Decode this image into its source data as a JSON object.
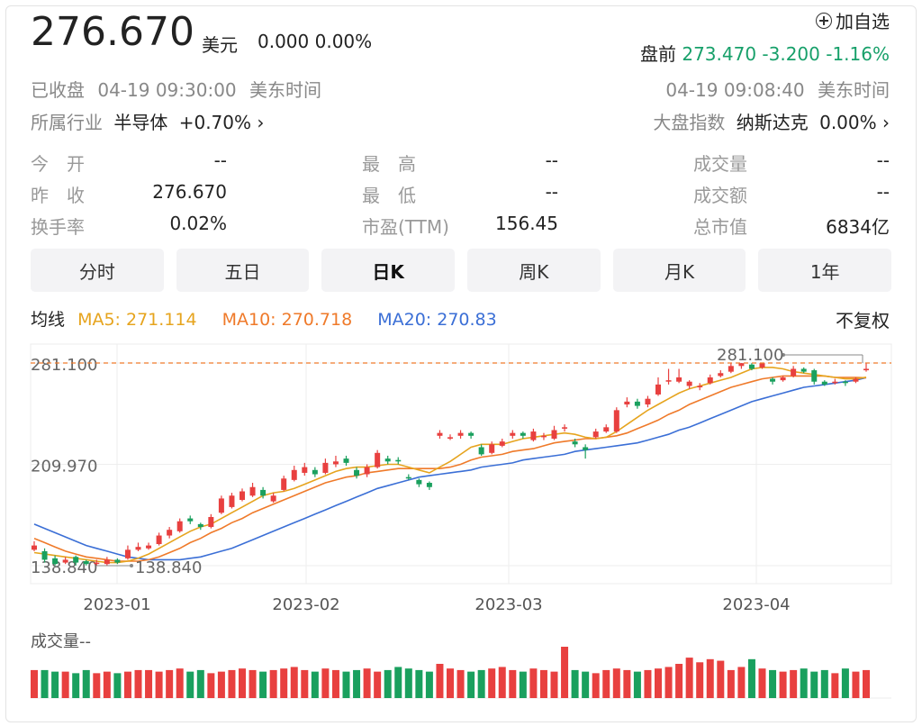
{
  "header": {
    "price": "276.670",
    "unit": "美元",
    "change": "0.000 0.00%",
    "watch_label": "加自选",
    "premarket_label": "盘前",
    "premarket_value": "273.470 -3.200 -1.16%",
    "status": "已收盘",
    "close_time": "04-19 09:30:00",
    "timezone": "美东时间",
    "premarket_time": "04-19 09:08:40",
    "industry_label": "所属行业",
    "industry_name": "半导体",
    "industry_change": "+0.70%",
    "index_label": "大盘指数",
    "index_name": "纳斯达克",
    "index_change": "0.00%"
  },
  "stats": [
    {
      "k": "今　开",
      "v": "--"
    },
    {
      "k": "最　高",
      "v": "--"
    },
    {
      "k": "成交量",
      "v": "--"
    },
    {
      "k": "昨　收",
      "v": "276.670"
    },
    {
      "k": "最　低",
      "v": "--"
    },
    {
      "k": "成交额",
      "v": "--"
    },
    {
      "k": "换手率",
      "v": "0.02%"
    },
    {
      "k": "市盈(TTM)",
      "v": "156.45"
    },
    {
      "k": "总市值",
      "v": "6834亿"
    }
  ],
  "tabs": [
    "分时",
    "五日",
    "日K",
    "周K",
    "月K",
    "1年"
  ],
  "active_tab": 2,
  "ma": {
    "label": "均线",
    "ma5": "MA5: 271.114",
    "ma10": "MA10: 270.718",
    "ma20": "MA20: 270.83",
    "adjust": "不复权"
  },
  "colors": {
    "up": "#e8403f",
    "down": "#1aa05e",
    "ma5": "#e6a41e",
    "ma10": "#ef7a2a",
    "ma20": "#3b6fd6"
  },
  "chart_data": {
    "type": "candlestick",
    "y_ticks": [
      "281.100",
      "209.970",
      "138.840"
    ],
    "ylim": [
      138.84,
      281.1
    ],
    "x_ticks": [
      "2023-01",
      "2023-02",
      "2023-03",
      "2023-04"
    ],
    "max_label": "281.100",
    "min_label": "138.840",
    "volume_label": "成交量--",
    "candles": [
      {
        "o": 150,
        "c": 153,
        "h": 156,
        "l": 149
      },
      {
        "o": 149,
        "c": 143,
        "h": 151,
        "l": 141
      },
      {
        "o": 144,
        "c": 140,
        "h": 146,
        "l": 139
      },
      {
        "o": 141,
        "c": 143,
        "h": 145,
        "l": 140
      },
      {
        "o": 145,
        "c": 141,
        "h": 146,
        "l": 139
      },
      {
        "o": 142,
        "c": 140,
        "h": 143,
        "l": 139
      },
      {
        "o": 140,
        "c": 141,
        "h": 143,
        "l": 138.84
      },
      {
        "o": 140,
        "c": 143,
        "h": 145,
        "l": 139
      },
      {
        "o": 143,
        "c": 141,
        "h": 144,
        "l": 140
      },
      {
        "o": 144,
        "c": 150,
        "h": 153,
        "l": 143
      },
      {
        "o": 150,
        "c": 152,
        "h": 155,
        "l": 149
      },
      {
        "o": 151,
        "c": 153,
        "h": 155,
        "l": 150
      },
      {
        "o": 154,
        "c": 160,
        "h": 162,
        "l": 153
      },
      {
        "o": 160,
        "c": 164,
        "h": 166,
        "l": 158
      },
      {
        "o": 163,
        "c": 170,
        "h": 172,
        "l": 162
      },
      {
        "o": 172,
        "c": 170,
        "h": 174,
        "l": 168
      },
      {
        "o": 168,
        "c": 166,
        "h": 169,
        "l": 164
      },
      {
        "o": 166,
        "c": 173,
        "h": 175,
        "l": 165
      },
      {
        "o": 176,
        "c": 186,
        "h": 188,
        "l": 175
      },
      {
        "o": 180,
        "c": 188,
        "h": 190,
        "l": 179
      },
      {
        "o": 185,
        "c": 191,
        "h": 193,
        "l": 184
      },
      {
        "o": 188,
        "c": 194,
        "h": 197,
        "l": 187
      },
      {
        "o": 192,
        "c": 188,
        "h": 194,
        "l": 186
      },
      {
        "o": 184,
        "c": 188,
        "h": 190,
        "l": 183
      },
      {
        "o": 192,
        "c": 200,
        "h": 202,
        "l": 191
      },
      {
        "o": 199,
        "c": 206,
        "h": 209,
        "l": 198
      },
      {
        "o": 204,
        "c": 208,
        "h": 211,
        "l": 202
      },
      {
        "o": 206,
        "c": 203,
        "h": 208,
        "l": 201
      },
      {
        "o": 204,
        "c": 211,
        "h": 214,
        "l": 203
      },
      {
        "o": 210,
        "c": 212,
        "h": 216,
        "l": 208
      },
      {
        "o": 214,
        "c": 211,
        "h": 216,
        "l": 209
      },
      {
        "o": 206,
        "c": 202,
        "h": 208,
        "l": 200
      },
      {
        "o": 203,
        "c": 208,
        "h": 210,
        "l": 201
      },
      {
        "o": 208,
        "c": 218,
        "h": 220,
        "l": 207
      },
      {
        "o": 214,
        "c": 212,
        "h": 216,
        "l": 210
      },
      {
        "o": 213,
        "c": 212,
        "h": 215,
        "l": 210
      },
      {
        "o": 201,
        "c": 200,
        "h": 203,
        "l": 199
      },
      {
        "o": 199,
        "c": 196,
        "h": 200,
        "l": 194
      },
      {
        "o": 197,
        "c": 194,
        "h": 198,
        "l": 192
      },
      {
        "o": 230,
        "c": 232,
        "h": 234,
        "l": 228
      },
      {
        "o": 228,
        "c": 229,
        "h": 231,
        "l": 227
      },
      {
        "o": 230,
        "c": 232,
        "h": 234,
        "l": 228
      },
      {
        "o": 232,
        "c": 230,
        "h": 233,
        "l": 228
      },
      {
        "o": 222,
        "c": 217,
        "h": 224,
        "l": 216
      },
      {
        "o": 218,
        "c": 224,
        "h": 226,
        "l": 217
      },
      {
        "o": 223,
        "c": 226,
        "h": 228,
        "l": 222
      },
      {
        "o": 230,
        "c": 232,
        "h": 234,
        "l": 228
      },
      {
        "o": 232,
        "c": 230,
        "h": 233,
        "l": 228
      },
      {
        "o": 227,
        "c": 233,
        "h": 235,
        "l": 226
      },
      {
        "o": 229,
        "c": 230,
        "h": 232,
        "l": 227
      },
      {
        "o": 228,
        "c": 234,
        "h": 237,
        "l": 227
      },
      {
        "o": 235,
        "c": 236,
        "h": 238,
        "l": 233
      },
      {
        "o": 226,
        "c": 224,
        "h": 228,
        "l": 222
      },
      {
        "o": 222,
        "c": 220,
        "h": 224,
        "l": 214
      },
      {
        "o": 229,
        "c": 233,
        "h": 235,
        "l": 228
      },
      {
        "o": 233,
        "c": 236,
        "h": 238,
        "l": 232
      },
      {
        "o": 233,
        "c": 248,
        "h": 250,
        "l": 232
      },
      {
        "o": 252,
        "c": 254,
        "h": 257,
        "l": 250
      },
      {
        "o": 254,
        "c": 251,
        "h": 256,
        "l": 249
      },
      {
        "o": 252,
        "c": 256,
        "h": 258,
        "l": 250
      },
      {
        "o": 259,
        "c": 266,
        "h": 271,
        "l": 258
      },
      {
        "o": 268,
        "c": 269,
        "h": 277,
        "l": 266
      },
      {
        "o": 268,
        "c": 271,
        "h": 277,
        "l": 267
      },
      {
        "o": 265,
        "c": 268,
        "h": 269,
        "l": 263
      },
      {
        "o": 264,
        "c": 265,
        "h": 267,
        "l": 262
      },
      {
        "o": 267,
        "c": 271,
        "h": 273,
        "l": 266
      },
      {
        "o": 272,
        "c": 274,
        "h": 276,
        "l": 271
      },
      {
        "o": 275,
        "c": 279,
        "h": 281,
        "l": 274
      },
      {
        "o": 279,
        "c": 281,
        "h": 281.1,
        "l": 277
      },
      {
        "o": 280,
        "c": 277,
        "h": 281,
        "l": 276
      },
      {
        "o": 278,
        "c": 281,
        "h": 281.1,
        "l": 277
      },
      {
        "o": 270,
        "c": 268,
        "h": 271,
        "l": 266
      },
      {
        "o": 269,
        "c": 271,
        "h": 272,
        "l": 268
      },
      {
        "o": 272,
        "c": 277,
        "h": 279,
        "l": 271
      },
      {
        "o": 277,
        "c": 275,
        "h": 278,
        "l": 274
      },
      {
        "o": 276,
        "c": 268,
        "h": 277,
        "l": 266
      },
      {
        "o": 268,
        "c": 266,
        "h": 269,
        "l": 265
      },
      {
        "o": 267,
        "c": 268,
        "h": 270,
        "l": 266
      },
      {
        "o": 268,
        "c": 267,
        "h": 269,
        "l": 265
      },
      {
        "o": 268,
        "c": 270,
        "h": 271,
        "l": 267
      },
      {
        "o": 276,
        "c": 277,
        "h": 281,
        "l": 275
      }
    ],
    "ma5": [
      148,
      147,
      146,
      145,
      144,
      143,
      142,
      141,
      141,
      142,
      144,
      147,
      151,
      155,
      159,
      163,
      166,
      168,
      172,
      176,
      180,
      184,
      188,
      190,
      191,
      193,
      196,
      199,
      202,
      205,
      207,
      208,
      208,
      209,
      210,
      210,
      208,
      206,
      204,
      208,
      212,
      217,
      222,
      224,
      224,
      224,
      226,
      228,
      229,
      230,
      231,
      232,
      231,
      229,
      228,
      229,
      233,
      238,
      243,
      248,
      252,
      256,
      260,
      263,
      265,
      267,
      269,
      271,
      274,
      277,
      278,
      278,
      277,
      275,
      274,
      273,
      272,
      271,
      270,
      270,
      271.114
    ],
    "ma10": [
      158,
      155,
      152,
      149,
      147,
      145,
      144,
      143,
      142,
      142,
      142,
      143,
      145,
      148,
      151,
      155,
      158,
      162,
      165,
      169,
      172,
      176,
      179,
      182,
      185,
      188,
      191,
      194,
      197,
      199,
      201,
      202,
      204,
      205,
      206,
      207,
      207,
      207,
      207,
      207,
      208,
      210,
      213,
      215,
      216,
      217,
      219,
      220,
      221,
      223,
      225,
      226,
      227,
      228,
      228,
      229,
      230,
      232,
      235,
      238,
      241,
      245,
      248,
      252,
      255,
      258,
      261,
      264,
      266,
      268,
      270,
      271,
      272,
      272,
      272,
      272,
      272,
      271,
      271,
      271,
      270.718
    ],
    "ma20": [
      168,
      165,
      162,
      159,
      156,
      153,
      151,
      149,
      147,
      145,
      144,
      143,
      143,
      143,
      143,
      144,
      145,
      147,
      149,
      151,
      154,
      157,
      160,
      163,
      166,
      169,
      172,
      175,
      178,
      181,
      184,
      187,
      190,
      193,
      195,
      197,
      199,
      201,
      202,
      203,
      204,
      205,
      206,
      208,
      209,
      210,
      211,
      213,
      214,
      215,
      216,
      217,
      219,
      220,
      221,
      222,
      223,
      224,
      225,
      227,
      229,
      231,
      234,
      236,
      239,
      242,
      245,
      248,
      251,
      254,
      256,
      258,
      260,
      262,
      264,
      265,
      266,
      267,
      268,
      269,
      270.83
    ],
    "volumes": [
      18,
      18,
      17,
      17,
      16,
      18,
      16,
      17,
      16,
      17,
      18,
      18,
      17,
      18,
      19,
      17,
      18,
      16,
      17,
      18,
      19,
      18,
      17,
      18,
      19,
      20,
      18,
      17,
      19,
      18,
      17,
      18,
      19,
      17,
      18,
      20,
      19,
      18,
      17,
      22,
      19,
      18,
      17,
      18,
      19,
      20,
      18,
      17,
      19,
      18,
      17,
      33,
      18,
      17,
      16,
      18,
      19,
      18,
      17,
      18,
      19,
      20,
      22,
      26,
      23,
      25,
      24,
      18,
      20,
      25,
      19,
      18,
      17,
      18,
      19,
      17,
      18,
      16,
      19,
      17,
      18
    ]
  }
}
